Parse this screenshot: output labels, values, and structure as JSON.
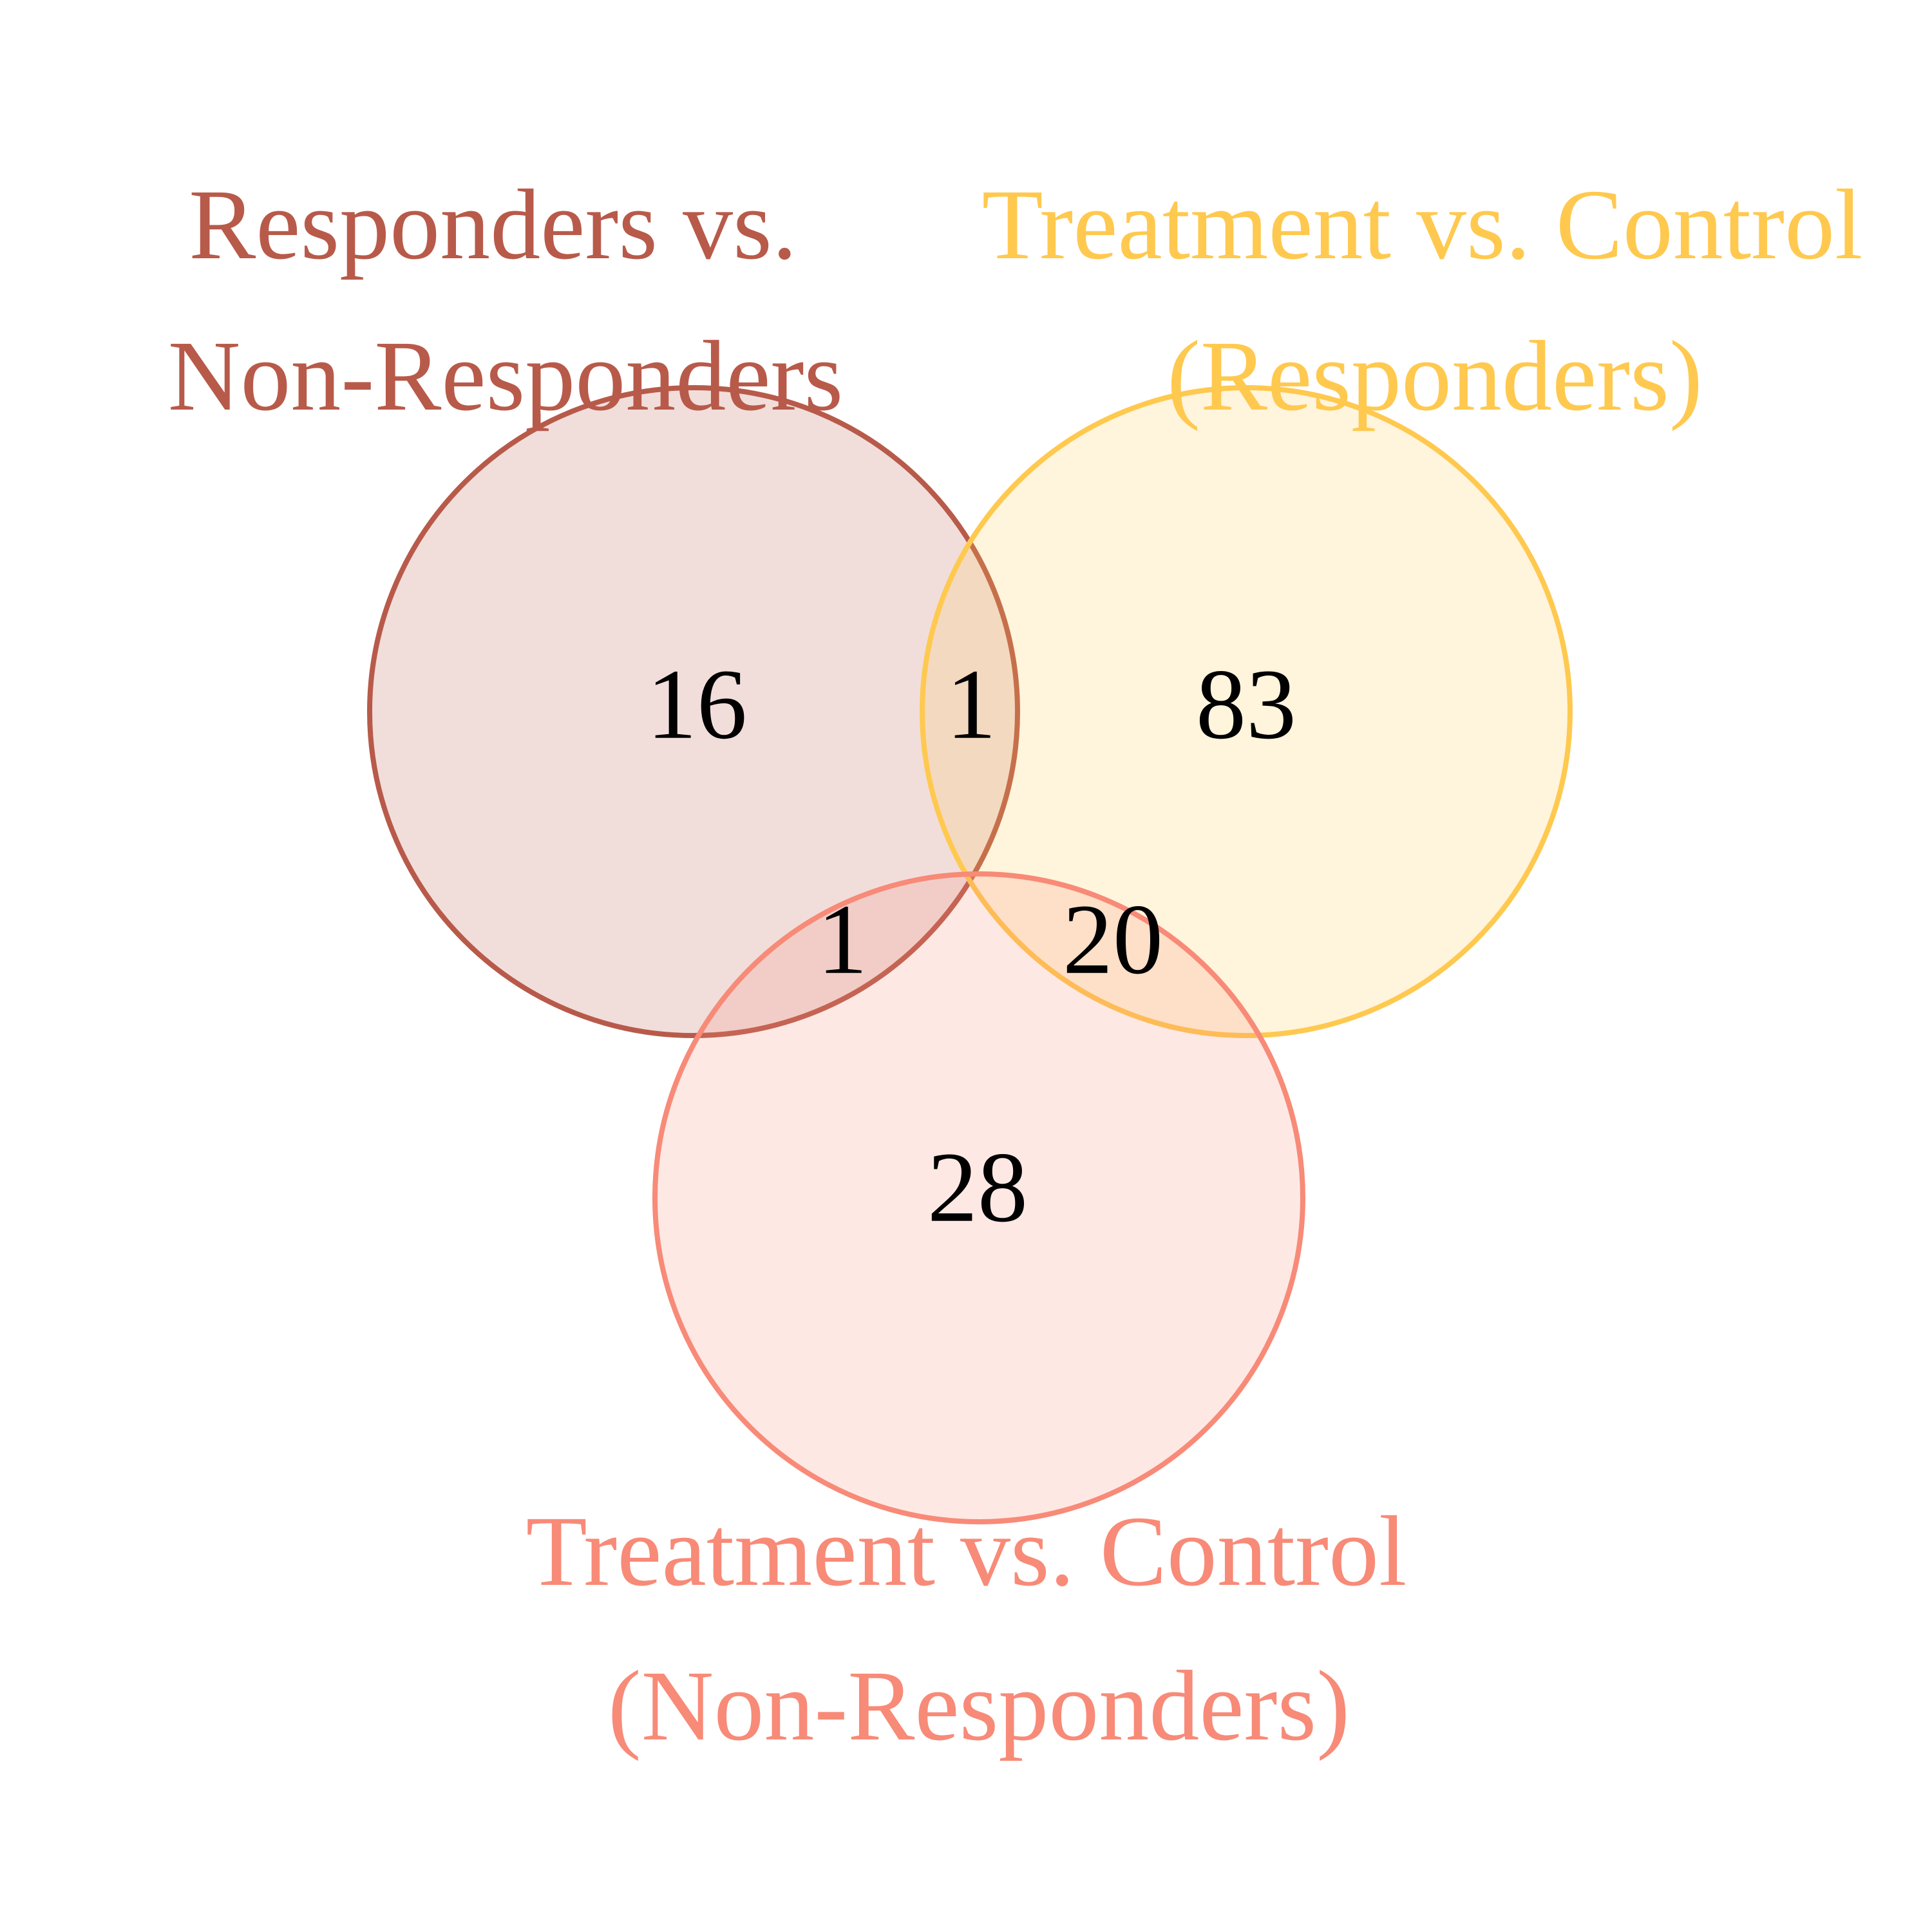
{
  "sets": [
    {
      "id": "A",
      "label_lines": [
        "Responders vs.",
        "Non-Responders"
      ],
      "stroke": "#B85A4A",
      "fill": "#B85A4A"
    },
    {
      "id": "B",
      "label_lines": [
        "Treatment vs. Control",
        "(Responders)"
      ],
      "stroke": "#FFC94F",
      "fill": "#FFC94F"
    },
    {
      "id": "C",
      "label_lines": [
        "Treatment vs. Control",
        "(Non-Responders)"
      ],
      "stroke": "#F88A78",
      "fill": "#F88A78"
    }
  ],
  "regions": {
    "A_only": "16",
    "A_B": "1",
    "B_only": "83",
    "A_C": "1",
    "B_C": "20",
    "C_only": "28"
  }
}
